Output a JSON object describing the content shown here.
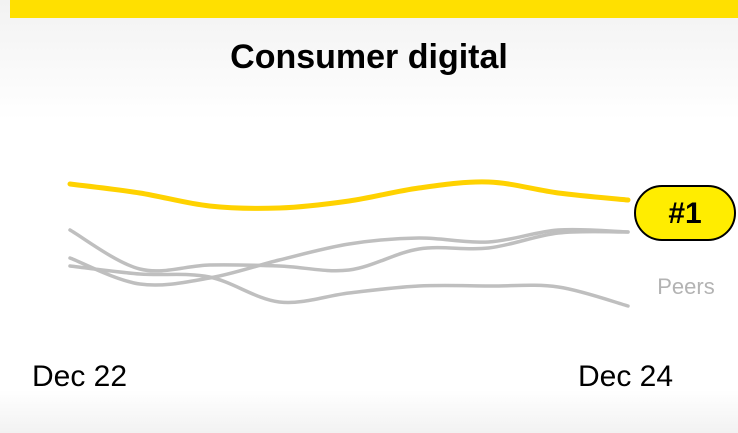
{
  "title": "Consumer digital",
  "chart_data": {
    "type": "line",
    "title": "Consumer digital",
    "x_start_label": "Dec 22",
    "x_end_label": "Dec 24",
    "y_axis": "rank (1 = best), no ticks shown",
    "ylim": [
      0,
      100
    ],
    "highlight": {
      "name": "",
      "rank_label": "#1",
      "color": "#ffd200",
      "values": [
        78,
        73.5,
        67,
        66,
        69.5,
        76,
        79,
        73.5,
        70
      ]
    },
    "peers_label": "Peers",
    "peers_color": "#bfbfbf",
    "peers": [
      {
        "values": [
          55,
          35.5,
          37.5,
          37,
          35,
          45.5,
          46,
          53.5,
          54
        ]
      },
      {
        "values": [
          41,
          28,
          31,
          40,
          48,
          51,
          49,
          55,
          54
        ]
      },
      {
        "values": [
          37,
          33,
          31.5,
          19,
          23.5,
          27,
          27,
          26.5,
          17
        ]
      }
    ],
    "grid": false,
    "legend": "none"
  }
}
